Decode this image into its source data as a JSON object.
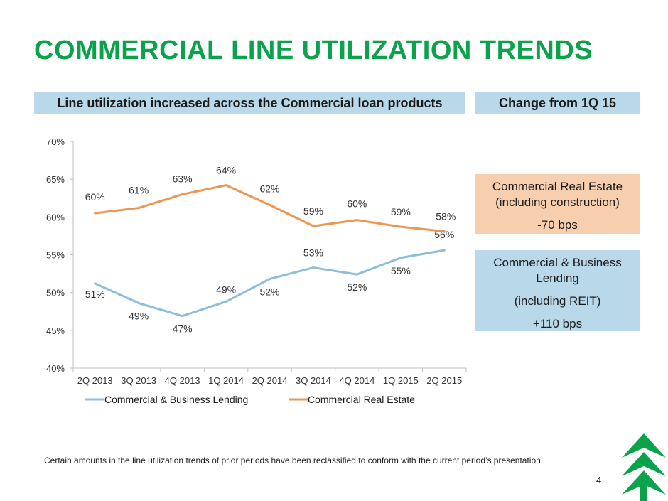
{
  "title": "COMMERCIAL LINE UTILIZATION TRENDS",
  "header_left": "Line utilization increased across the Commercial loan products",
  "header_right": "Change from 1Q 15",
  "boxes": {
    "cre": {
      "line1": "Commercial Real Estate",
      "line2": "(including construction)",
      "value": "-70 bps"
    },
    "cbl": {
      "line1": "Commercial  & Business",
      "line2": "Lending",
      "line3": "(including REIT)",
      "value": "+110 bps"
    }
  },
  "footnote": "Certain amounts in the line utilization trends of prior periods have been reclassified to conform with the current period’s presentation.",
  "page_number": "4",
  "colors": {
    "title": "#0aa24a",
    "cbl": "#8dbcdc",
    "cre": "#ee9650"
  },
  "chart_data": {
    "type": "line",
    "categories": [
      "2Q 2013",
      "3Q 2013",
      "4Q 2013",
      "1Q 2014",
      "2Q 2014",
      "3Q 2014",
      "4Q 2014",
      "1Q 2015",
      "2Q 2015"
    ],
    "series": [
      {
        "name": "Commercial & Business Lending",
        "values": [
          51.2,
          48.6,
          46.9,
          48.8,
          51.8,
          53.3,
          52.4,
          54.6,
          55.6
        ],
        "labels": [
          "51%",
          "49%",
          "47%",
          "49%",
          "52%",
          "53%",
          "52%",
          "55%",
          "56%"
        ]
      },
      {
        "name": "Commercial Real Estate",
        "values": [
          60.5,
          61.2,
          63.0,
          64.2,
          61.6,
          58.8,
          59.6,
          58.7,
          58.1
        ],
        "labels": [
          "60%",
          "61%",
          "63%",
          "64%",
          "62%",
          "59%",
          "60%",
          "59%",
          "58%"
        ]
      }
    ],
    "ylim": [
      40,
      70
    ],
    "yticks": [
      "40%",
      "45%",
      "50%",
      "55%",
      "60%",
      "65%",
      "70%"
    ],
    "legend_position": "bottom",
    "grid": false
  }
}
